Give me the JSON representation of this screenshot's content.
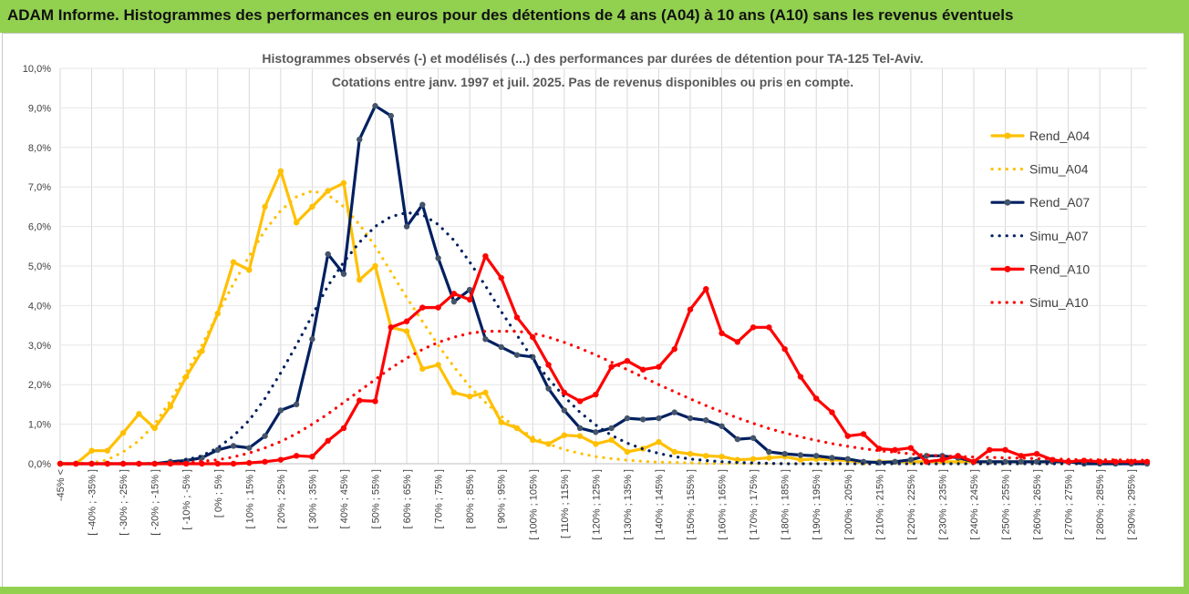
{
  "header": {
    "title": "ADAM Informe. Histogrammes des performances en euros pour des détentions de 4 ans (A04) à 10 ans (A10) sans les revenus éventuels"
  },
  "chart_data": {
    "type": "line",
    "title": "Histogrammes observés (-) et modélisés (...) des performances par durées de détention pour TA-125 Tel-Aviv.",
    "subtitle": "Cotations entre janv. 1997 et juil. 2025. Pas de revenus disponibles ou pris en compte.",
    "xlabel": "",
    "ylabel": "",
    "ylim": [
      0,
      10
    ],
    "y_ticks": [
      "0,0%",
      "1,0%",
      "2,0%",
      "3,0%",
      "4,0%",
      "5,0%",
      "6,0%",
      "7,0%",
      "8,0%",
      "9,0%",
      "10,0%"
    ],
    "grid": "vertical and horizontal",
    "legend_position": "right",
    "categories": [
      "-45% <",
      "",
      "[ -40% ; -35% ]",
      "",
      "[ -30% ; -25% ]",
      "",
      "[ -20% ; -15% ]",
      "",
      "[ -10% ; -5% ]",
      "",
      "[ 0% ; 5% ]",
      "",
      "[ 10% ; 15% ]",
      "",
      "[ 20% ; 25% ]",
      "",
      "[ 30% ; 35% ]",
      "",
      "[ 40% ; 45% ]",
      "",
      "[ 50% ; 55% ]",
      "",
      "[ 60% ; 65% ]",
      "",
      "[ 70% ; 75% ]",
      "",
      "[ 80% ; 85% ]",
      "",
      "[ 90% ; 95% ]",
      "",
      "[ 100% ; 105% ]",
      "",
      "[ 110% ; 115% ]",
      "",
      "[ 120% ; 125% ]",
      "",
      "[ 130% ; 135% ]",
      "",
      "[ 140% ; 145% ]",
      "",
      "[ 150% ; 155% ]",
      "",
      "[ 160% ; 165% ]",
      "",
      "[ 170% ; 175% ]",
      "",
      "[ 180% ; 185% ]",
      "",
      "[ 190% ; 195% ]",
      "",
      "[ 200% ; 205% ]",
      "",
      "[ 210% ; 215% ]",
      "",
      "[ 220% ; 225% ]",
      "",
      "[ 230% ; 235% ]",
      "",
      "[ 240% ; 245% ]",
      "",
      "[ 250% ; 255% ]",
      "",
      "[ 260% ; 265% ]",
      "",
      "[ 270% ; 275% ]",
      "",
      "[ 280% ; 285% ]",
      "",
      "[ 290% ; 295% ]",
      ""
    ],
    "series": [
      {
        "name": "Rend_A04",
        "style": "solid",
        "color": "#ffc000",
        "values": [
          0,
          0,
          0.33,
          0.33,
          0.78,
          1.26,
          0.9,
          1.45,
          2.2,
          2.85,
          3.8,
          5.1,
          4.9,
          6.5,
          7.4,
          6.1,
          6.5,
          6.9,
          7.1,
          4.65,
          5.0,
          3.45,
          3.35,
          2.4,
          2.5,
          1.8,
          1.7,
          1.8,
          1.05,
          0.9,
          0.6,
          0.5,
          0.72,
          0.7,
          0.5,
          0.6,
          0.3,
          0.38,
          0.55,
          0.3,
          0.25,
          0.2,
          0.18,
          0.1,
          0.12,
          0.15,
          0.18,
          0.1,
          0.12,
          0.1,
          0.08,
          0.03,
          0.05,
          0.05,
          0.05,
          0.05,
          0.05,
          0.05,
          0.05,
          0.05,
          0.05,
          0.05,
          0.05,
          0.05,
          0.05,
          0.05,
          0.05,
          0.05,
          0.05,
          0.05
        ]
      },
      {
        "name": "Simu_A04",
        "style": "dotted",
        "color": "#ffc000",
        "values": [
          0,
          0,
          0.02,
          0.1,
          0.3,
          0.58,
          1.0,
          1.6,
          2.3,
          3.0,
          3.8,
          4.55,
          5.25,
          5.9,
          6.4,
          6.75,
          6.9,
          6.8,
          6.5,
          6.05,
          5.5,
          4.85,
          4.2,
          3.6,
          3.0,
          2.45,
          1.95,
          1.55,
          1.2,
          0.9,
          0.68,
          0.5,
          0.36,
          0.26,
          0.18,
          0.13,
          0.09,
          0.06,
          0.04,
          0.03,
          0.02,
          0.01,
          0.01,
          0.01,
          0,
          0,
          0,
          0,
          0,
          0,
          0,
          0,
          0,
          0,
          0,
          0,
          0,
          0,
          0,
          0,
          0,
          0,
          0,
          0,
          0,
          0,
          0,
          0,
          0,
          0
        ]
      },
      {
        "name": "Rend_A07",
        "style": "solid",
        "color": "#002060",
        "values": [
          0,
          0,
          0,
          0,
          0,
          0,
          0,
          0.05,
          0.08,
          0.15,
          0.35,
          0.45,
          0.4,
          0.7,
          1.35,
          1.5,
          3.15,
          5.3,
          4.8,
          8.2,
          9.05,
          8.8,
          6.0,
          6.55,
          5.2,
          4.1,
          4.4,
          3.15,
          2.95,
          2.75,
          2.7,
          1.9,
          1.35,
          0.9,
          0.8,
          0.9,
          1.15,
          1.12,
          1.15,
          1.3,
          1.15,
          1.1,
          0.95,
          0.62,
          0.65,
          0.3,
          0.25,
          0.22,
          0.2,
          0.15,
          0.12,
          0.05,
          0.03,
          0.05,
          0.1,
          0.2,
          0.2,
          0.15,
          0.05,
          0.05,
          0.05,
          0.05,
          0.05,
          0.05,
          0.05,
          0,
          0,
          0,
          0,
          0
        ]
      },
      {
        "name": "Simu_A07",
        "style": "dotted",
        "color": "#002060",
        "values": [
          0,
          0,
          0,
          0,
          0,
          0,
          0.01,
          0.04,
          0.1,
          0.2,
          0.4,
          0.7,
          1.1,
          1.65,
          2.3,
          3.0,
          3.75,
          4.5,
          5.1,
          5.6,
          6.0,
          6.25,
          6.35,
          6.3,
          6.05,
          5.65,
          5.1,
          4.5,
          3.85,
          3.25,
          2.65,
          2.15,
          1.7,
          1.3,
          0.98,
          0.72,
          0.52,
          0.37,
          0.26,
          0.18,
          0.12,
          0.08,
          0.05,
          0.03,
          0.02,
          0.01,
          0,
          0,
          0,
          0,
          0,
          0,
          0,
          0,
          0,
          0,
          0,
          0,
          0,
          0,
          0,
          0,
          0,
          0,
          0,
          0,
          0,
          0,
          0,
          0
        ]
      },
      {
        "name": "Rend_A10",
        "style": "solid",
        "color": "#ff0000",
        "values": [
          0,
          0,
          0,
          0,
          0,
          0,
          0,
          0,
          0,
          0,
          0,
          0,
          0.02,
          0.05,
          0.1,
          0.2,
          0.18,
          0.58,
          0.9,
          1.6,
          1.58,
          3.45,
          3.6,
          3.95,
          3.95,
          4.3,
          4.15,
          5.25,
          4.7,
          3.7,
          3.2,
          2.5,
          1.8,
          1.58,
          1.75,
          2.45,
          2.6,
          2.38,
          2.45,
          2.9,
          3.9,
          4.42,
          3.3,
          3.08,
          3.45,
          3.45,
          2.9,
          2.2,
          1.65,
          1.3,
          0.7,
          0.75,
          0.38,
          0.35,
          0.4,
          0.05,
          0.1,
          0.2,
          0.05,
          0.35,
          0.35,
          0.2,
          0.25,
          0.1,
          0.05,
          0.08,
          0.05,
          0.05,
          0.05,
          0.05
        ]
      },
      {
        "name": "Simu_A10",
        "style": "dotted",
        "color": "#ff0000",
        "values": [
          0,
          0,
          0,
          0,
          0,
          0,
          0,
          0.01,
          0.03,
          0.06,
          0.1,
          0.17,
          0.27,
          0.4,
          0.56,
          0.76,
          1.0,
          1.26,
          1.55,
          1.84,
          2.13,
          2.42,
          2.67,
          2.89,
          3.07,
          3.2,
          3.3,
          3.35,
          3.35,
          3.35,
          3.3,
          3.2,
          3.07,
          2.92,
          2.75,
          2.57,
          2.38,
          2.19,
          2.0,
          1.82,
          1.64,
          1.47,
          1.31,
          1.16,
          1.02,
          0.89,
          0.78,
          0.68,
          0.59,
          0.51,
          0.44,
          0.38,
          0.33,
          0.29,
          0.25,
          0.22,
          0.2,
          0.18,
          0.17,
          0.16,
          0.15,
          0.14,
          0.13,
          0.12,
          0.11,
          0.1,
          0.1,
          0.1,
          0.09,
          0.09
        ]
      }
    ]
  }
}
